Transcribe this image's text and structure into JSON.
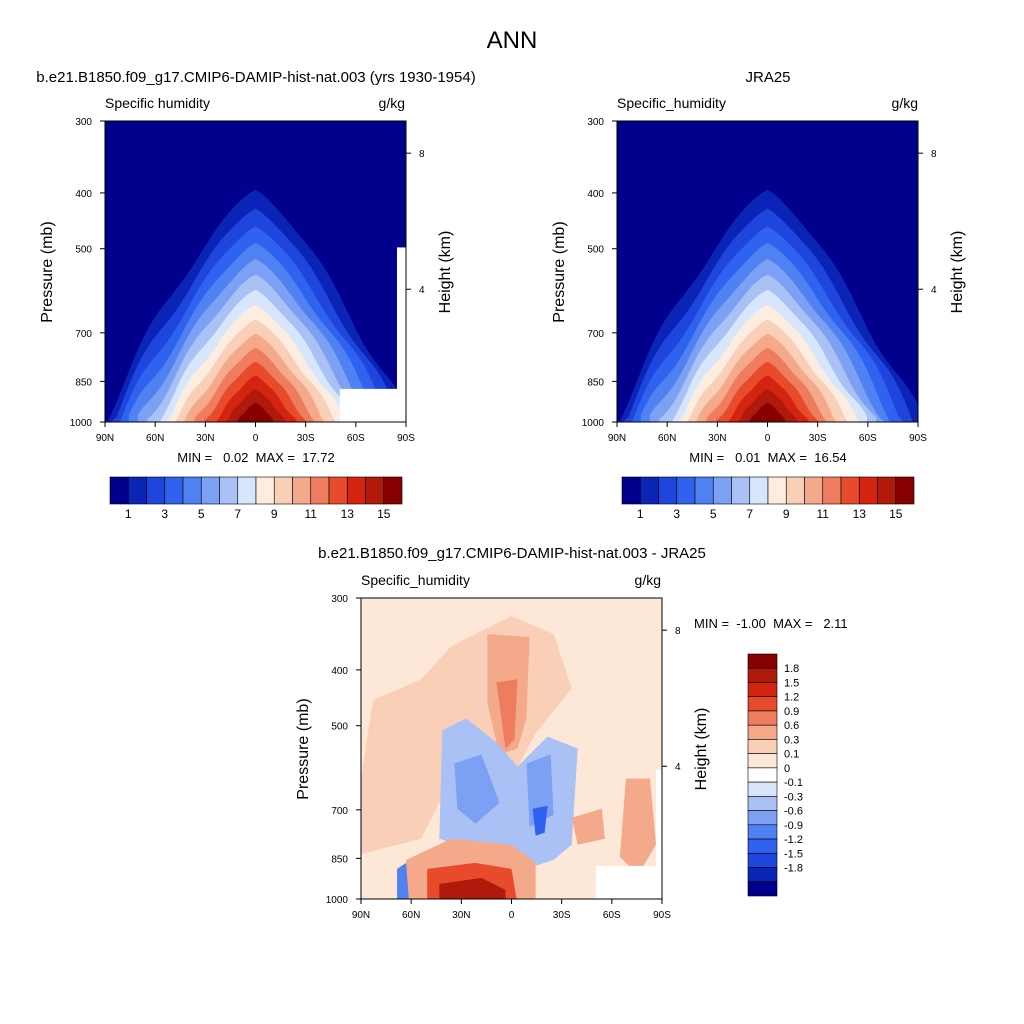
{
  "figure_title": "ANN",
  "panels": [
    {
      "title": "b.e21.B1850.f09_g17.CMIP6-DAMIP-hist-nat.003 (yrs 1930-1954)",
      "left_label": "Specific humidity",
      "right_label": "g/kg",
      "y_label": "Pressure (mb)",
      "y2_label": "Height (km)",
      "stats": "MIN =   0.02  MAX =  17.72"
    },
    {
      "title": "JRA25",
      "left_label": "Specific_humidity",
      "right_label": "g/kg",
      "y_label": "Pressure (mb)",
      "y2_label": "Height (km)",
      "stats": "MIN =   0.01  MAX =  16.54"
    },
    {
      "title": "b.e21.B1850.f09_g17.CMIP6-DAMIP-hist-nat.003 - JRA25",
      "left_label": "Specific_humidity",
      "right_label": "g/kg",
      "y_label": "Pressure (mb)",
      "y2_label": "Height (km)",
      "stats": "MIN =  -1.00  MAX =   2.11"
    }
  ],
  "colors": {
    "seq": [
      "#00008c",
      "#0a24b6",
      "#1e45dc",
      "#2f62ee",
      "#4f81f2",
      "#7ba0f4",
      "#a9c1f5",
      "#d8e6fc",
      "#fdece0",
      "#f9cfb7",
      "#f4a98a",
      "#ef7c5f",
      "#e84a2c",
      "#d4240f",
      "#b01a0c",
      "#870000"
    ],
    "diff": [
      "#00008c",
      "#0a24b6",
      "#1e45dc",
      "#2f62ee",
      "#4f81f2",
      "#7ba0f4",
      "#a9c1f5",
      "#d8e6fc",
      "#ffffff",
      "#fde8d8",
      "#f9cfb7",
      "#f4a98a",
      "#ef7c5f",
      "#e84a2c",
      "#d4240f",
      "#b01a0c",
      "#870000"
    ]
  },
  "chart_data": [
    {
      "type": "heatmap",
      "title": "b.e21.B1850.f09_g17.CMIP6-DAMIP-hist-nat.003 (yrs 1930-1954)",
      "variable": "Specific humidity",
      "units": "g/kg",
      "xlabel": "",
      "ylabel": "Pressure (mb)",
      "y2label": "Height (km)",
      "x_ticks": [
        "90N",
        "60N",
        "30N",
        "0",
        "30S",
        "60S",
        "90S"
      ],
      "y_ticks": [
        300,
        400,
        500,
        700,
        850,
        1000
      ],
      "y2_ticks": [
        8,
        4
      ],
      "y_scale": "log (inverted)",
      "min": 0.02,
      "max": 17.72,
      "colorbar_levels": [
        0,
        1,
        2,
        3,
        4,
        5,
        6,
        7,
        8,
        9,
        10,
        11,
        12,
        13,
        14,
        15,
        16
      ],
      "colorbar_labels": [
        "1",
        "3",
        "5",
        "7",
        "9",
        "11",
        "13",
        "15"
      ]
    },
    {
      "type": "heatmap",
      "title": "JRA25",
      "variable": "Specific_humidity",
      "units": "g/kg",
      "xlabel": "",
      "ylabel": "Pressure (mb)",
      "y2label": "Height (km)",
      "x_ticks": [
        "90N",
        "60N",
        "30N",
        "0",
        "30S",
        "60S",
        "90S"
      ],
      "y_ticks": [
        300,
        400,
        500,
        700,
        850,
        1000
      ],
      "y2_ticks": [
        8,
        4
      ],
      "y_scale": "log (inverted)",
      "min": 0.01,
      "max": 16.54,
      "colorbar_levels": [
        0,
        1,
        2,
        3,
        4,
        5,
        6,
        7,
        8,
        9,
        10,
        11,
        12,
        13,
        14,
        15,
        16
      ],
      "colorbar_labels": [
        "1",
        "3",
        "5",
        "7",
        "9",
        "11",
        "13",
        "15"
      ]
    },
    {
      "type": "heatmap",
      "title": "b.e21.B1850.f09_g17.CMIP6-DAMIP-hist-nat.003 - JRA25",
      "variable": "Specific_humidity",
      "units": "g/kg",
      "xlabel": "",
      "ylabel": "Pressure (mb)",
      "y2label": "Height (km)",
      "x_ticks": [
        "90N",
        "60N",
        "30N",
        "0",
        "30S",
        "60S",
        "90S"
      ],
      "y_ticks": [
        300,
        400,
        500,
        700,
        850,
        1000
      ],
      "y2_ticks": [
        8,
        4
      ],
      "y_scale": "log (inverted)",
      "min": -1.0,
      "max": 2.11,
      "colorbar_labels": [
        "1.8",
        "1.5",
        "1.2",
        "0.9",
        "0.6",
        "0.3",
        "0.1",
        "0",
        "-0.1",
        "-0.3",
        "-0.6",
        "-0.9",
        "-1.2",
        "-1.5",
        "-1.8"
      ]
    }
  ]
}
